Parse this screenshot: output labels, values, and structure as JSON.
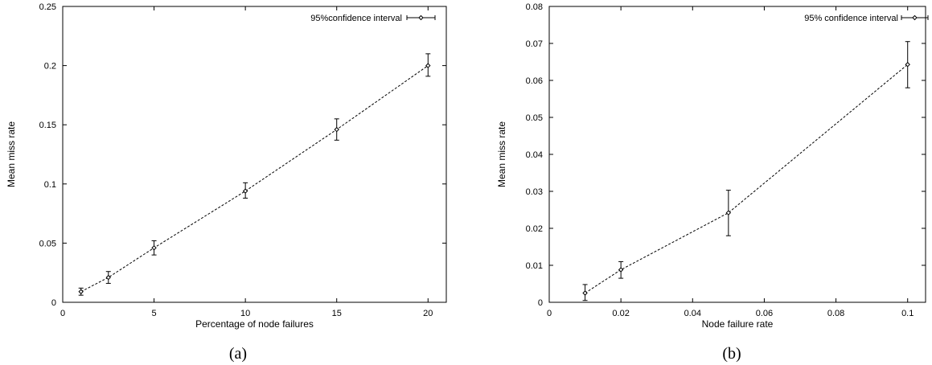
{
  "chart_data": [
    {
      "type": "line",
      "panel_label": "(a)",
      "xlabel": "Percentage of node failures",
      "ylabel": "Mean miss rate",
      "xlim": [
        0,
        21
      ],
      "ylim": [
        0,
        0.25
      ],
      "xticks": [
        "0",
        "5",
        "10",
        "15",
        "20"
      ],
      "xtick_values": [
        0,
        5,
        10,
        15,
        20
      ],
      "yticks": [
        "0",
        "0.05",
        "0.1",
        "0.15",
        "0.2",
        "0.25"
      ],
      "ytick_values": [
        0,
        0.05,
        0.1,
        0.15,
        0.2,
        0.25
      ],
      "grid": false,
      "legend_position": "top-right",
      "series": [
        {
          "name": "95%confidence interval",
          "x": [
            1,
            2.5,
            5,
            10,
            15,
            20
          ],
          "y": [
            0.009,
            0.021,
            0.046,
            0.094,
            0.146,
            0.2
          ],
          "err_low": [
            0.006,
            0.016,
            0.04,
            0.088,
            0.137,
            0.191
          ],
          "err_high": [
            0.012,
            0.026,
            0.052,
            0.101,
            0.155,
            0.21
          ]
        }
      ]
    },
    {
      "type": "line",
      "panel_label": "(b)",
      "xlabel": "Node failure rate",
      "ylabel": "Mean miss rate",
      "xlim": [
        0,
        0.105
      ],
      "ylim": [
        0,
        0.08
      ],
      "xticks": [
        "0",
        "0.02",
        "0.04",
        "0.06",
        "0.08",
        "0.1"
      ],
      "xtick_values": [
        0,
        0.02,
        0.04,
        0.06,
        0.08,
        0.1
      ],
      "yticks": [
        "0",
        "0.01",
        "0.02",
        "0.03",
        "0.04",
        "0.05",
        "0.06",
        "0.07",
        "0.08"
      ],
      "ytick_values": [
        0,
        0.01,
        0.02,
        0.03,
        0.04,
        0.05,
        0.06,
        0.07,
        0.08
      ],
      "grid": false,
      "legend_position": "top-right",
      "series": [
        {
          "name": "95% confidence interval",
          "x": [
            0.01,
            0.02,
            0.05,
            0.1
          ],
          "y": [
            0.0025,
            0.0088,
            0.0242,
            0.0643
          ],
          "err_low": [
            0.0005,
            0.0065,
            0.018,
            0.058
          ],
          "err_high": [
            0.0048,
            0.011,
            0.0303,
            0.0705
          ]
        }
      ]
    }
  ]
}
